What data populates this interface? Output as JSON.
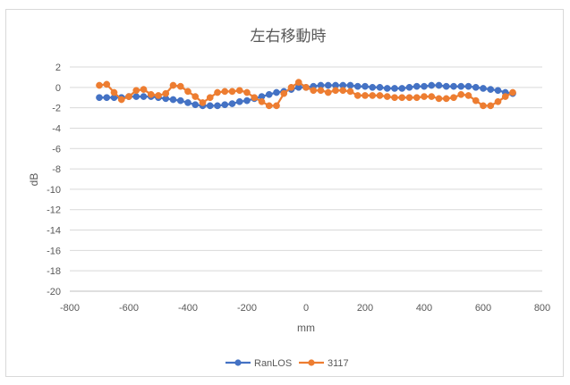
{
  "chart_data": {
    "type": "line",
    "title": "左右移動時",
    "xlabel": "mm",
    "ylabel": "dB",
    "xlim": [
      -800,
      800
    ],
    "ylim": [
      -20,
      2
    ],
    "x_ticks": [
      -800,
      -600,
      -400,
      -200,
      0,
      200,
      400,
      600,
      800
    ],
    "y_ticks": [
      2,
      0,
      -2,
      -4,
      -6,
      -8,
      -10,
      -12,
      -14,
      -16,
      -18,
      -20
    ],
    "grid": "horizontal",
    "legend": "bottom",
    "series": [
      {
        "name": "RanLOS",
        "color": "#4472C4",
        "points": [
          [
            -700,
            -1.0
          ],
          [
            -675,
            -1.0
          ],
          [
            -650,
            -1.0
          ],
          [
            -625,
            -1.0
          ],
          [
            -600,
            -0.9
          ],
          [
            -575,
            -0.9
          ],
          [
            -550,
            -0.9
          ],
          [
            -525,
            -0.9
          ],
          [
            -500,
            -1.0
          ],
          [
            -475,
            -1.1
          ],
          [
            -450,
            -1.2
          ],
          [
            -425,
            -1.3
          ],
          [
            -400,
            -1.5
          ],
          [
            -375,
            -1.7
          ],
          [
            -350,
            -1.8
          ],
          [
            -325,
            -1.8
          ],
          [
            -300,
            -1.8
          ],
          [
            -275,
            -1.7
          ],
          [
            -250,
            -1.6
          ],
          [
            -225,
            -1.4
          ],
          [
            -200,
            -1.3
          ],
          [
            -175,
            -1.1
          ],
          [
            -150,
            -0.9
          ],
          [
            -125,
            -0.7
          ],
          [
            -100,
            -0.5
          ],
          [
            -75,
            -0.4
          ],
          [
            -50,
            -0.2
          ],
          [
            -25,
            0.0
          ],
          [
            0,
            0.0
          ],
          [
            25,
            0.1
          ],
          [
            50,
            0.2
          ],
          [
            75,
            0.2
          ],
          [
            100,
            0.2
          ],
          [
            125,
            0.2
          ],
          [
            150,
            0.2
          ],
          [
            175,
            0.1
          ],
          [
            200,
            0.1
          ],
          [
            225,
            0.0
          ],
          [
            250,
            0.0
          ],
          [
            275,
            -0.1
          ],
          [
            300,
            -0.1
          ],
          [
            325,
            -0.1
          ],
          [
            350,
            0.0
          ],
          [
            375,
            0.1
          ],
          [
            400,
            0.1
          ],
          [
            425,
            0.2
          ],
          [
            450,
            0.2
          ],
          [
            475,
            0.1
          ],
          [
            500,
            0.1
          ],
          [
            525,
            0.1
          ],
          [
            550,
            0.1
          ],
          [
            575,
            0.0
          ],
          [
            600,
            -0.1
          ],
          [
            625,
            -0.2
          ],
          [
            650,
            -0.3
          ],
          [
            675,
            -0.5
          ],
          [
            700,
            -0.6
          ]
        ]
      },
      {
        "name": "3117",
        "color": "#ED7D31",
        "points": [
          [
            -700,
            0.2
          ],
          [
            -675,
            0.3
          ],
          [
            -650,
            -0.5
          ],
          [
            -625,
            -1.2
          ],
          [
            -600,
            -0.9
          ],
          [
            -575,
            -0.3
          ],
          [
            -550,
            -0.2
          ],
          [
            -525,
            -0.7
          ],
          [
            -500,
            -0.8
          ],
          [
            -475,
            -0.6
          ],
          [
            -450,
            0.2
          ],
          [
            -425,
            0.1
          ],
          [
            -400,
            -0.4
          ],
          [
            -375,
            -0.9
          ],
          [
            -350,
            -1.5
          ],
          [
            -325,
            -1.0
          ],
          [
            -300,
            -0.5
          ],
          [
            -275,
            -0.4
          ],
          [
            -250,
            -0.4
          ],
          [
            -225,
            -0.3
          ],
          [
            -200,
            -0.5
          ],
          [
            -175,
            -1.0
          ],
          [
            -150,
            -1.4
          ],
          [
            -125,
            -1.8
          ],
          [
            -100,
            -1.8
          ],
          [
            -75,
            -0.6
          ],
          [
            -50,
            0.0
          ],
          [
            -25,
            0.5
          ],
          [
            0,
            0.0
          ],
          [
            25,
            -0.3
          ],
          [
            50,
            -0.3
          ],
          [
            75,
            -0.5
          ],
          [
            100,
            -0.3
          ],
          [
            125,
            -0.3
          ],
          [
            150,
            -0.4
          ],
          [
            175,
            -0.8
          ],
          [
            200,
            -0.8
          ],
          [
            225,
            -0.8
          ],
          [
            250,
            -0.8
          ],
          [
            275,
            -0.9
          ],
          [
            300,
            -1.0
          ],
          [
            325,
            -1.0
          ],
          [
            350,
            -1.0
          ],
          [
            375,
            -1.0
          ],
          [
            400,
            -0.9
          ],
          [
            425,
            -0.9
          ],
          [
            450,
            -1.1
          ],
          [
            475,
            -1.1
          ],
          [
            500,
            -1.0
          ],
          [
            525,
            -0.7
          ],
          [
            550,
            -0.8
          ],
          [
            575,
            -1.3
          ],
          [
            600,
            -1.8
          ],
          [
            625,
            -1.8
          ],
          [
            650,
            -1.4
          ],
          [
            675,
            -0.9
          ],
          [
            700,
            -0.5
          ]
        ]
      }
    ]
  }
}
